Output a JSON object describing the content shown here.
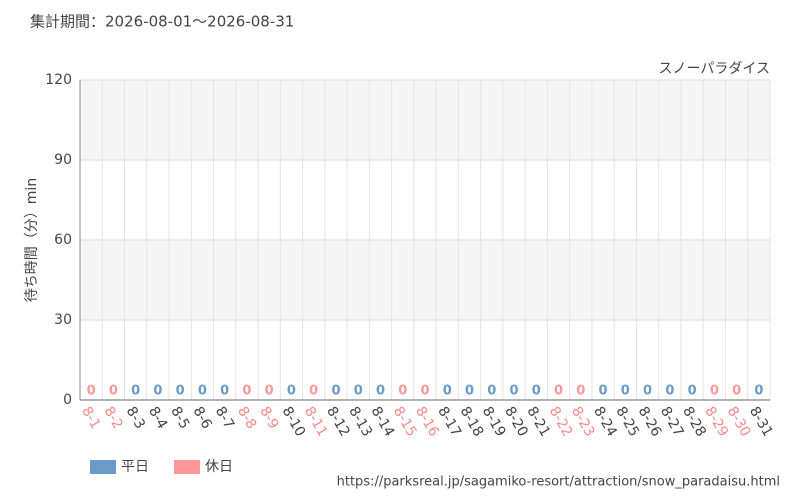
{
  "chart_data": {
    "type": "bar",
    "title": "集計期間：2026-08-01～2026-08-31",
    "subtitle": "スノーパラダイス",
    "y_label": "待ち時間（分）min",
    "source": "https://parksreal.jp/sagamiko-resort/attraction/snow_paradaisu.html",
    "categories": [
      "8-1",
      "8-2",
      "8-3",
      "8-4",
      "8-5",
      "8-6",
      "8-7",
      "8-8",
      "8-9",
      "8-10",
      "8-11",
      "8-12",
      "8-13",
      "8-14",
      "8-15",
      "8-16",
      "8-17",
      "8-18",
      "8-19",
      "8-20",
      "8-21",
      "8-22",
      "8-23",
      "8-24",
      "8-25",
      "8-26",
      "8-27",
      "8-28",
      "8-29",
      "8-30",
      "8-31"
    ],
    "series": [
      {
        "name": "平日",
        "color": "#6a9bc6",
        "values": [
          null,
          null,
          0,
          0,
          0,
          0,
          0,
          null,
          null,
          0,
          null,
          0,
          0,
          0,
          null,
          null,
          0,
          0,
          0,
          0,
          0,
          null,
          null,
          0,
          0,
          0,
          0,
          0,
          null,
          null,
          0
        ]
      },
      {
        "name": "休日",
        "color": "#ff9999",
        "values": [
          0,
          0,
          null,
          null,
          null,
          null,
          null,
          0,
          0,
          null,
          0,
          null,
          null,
          null,
          0,
          0,
          null,
          null,
          null,
          null,
          null,
          0,
          0,
          null,
          null,
          null,
          null,
          null,
          0,
          0,
          null
        ]
      }
    ],
    "ylim": [
      0,
      120
    ],
    "yticks": [
      0,
      30,
      60,
      90,
      120
    ],
    "grid": true
  }
}
